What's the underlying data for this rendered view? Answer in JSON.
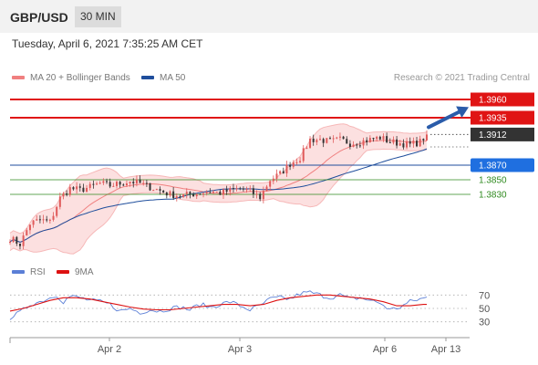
{
  "header": {
    "pair": "GBP/USD",
    "timeframe": "30 MIN",
    "datetime": "Tuesday, April 6, 2021 7:35:25 AM CET"
  },
  "legend": {
    "ma20": {
      "label": "MA 20 + Bollinger Bands",
      "color": "#f08080"
    },
    "ma50": {
      "label": "MA 50",
      "color": "#1f4e9c"
    },
    "credit": "Research © 2021 Trading Central"
  },
  "rsi_legend": {
    "rsi": {
      "label": "RSI",
      "color": "#5b7fd6"
    },
    "ma9": {
      "label": "9MA",
      "color": "#dd1111"
    }
  },
  "colors": {
    "resistance": "#e01414",
    "support": "#2f8a1f",
    "pivot": "#1f4e9c",
    "last": "#333333",
    "band_fill": "#fbdada",
    "candle_up": "#e05a5a",
    "candle_down": "#333333",
    "arrow": "#2a5caa"
  },
  "chart_data": [
    {
      "type": "line",
      "subtype": "candlestick",
      "x_ticks": [
        "Apr 2",
        "Apr 3",
        "Apr 6",
        "Apr 13"
      ],
      "ylim": [
        1.3745,
        1.3975
      ],
      "levels": [
        {
          "label": "1.3960",
          "value": 1.396,
          "style": "resistance"
        },
        {
          "label": "1.3935",
          "value": 1.3935,
          "style": "resistance"
        },
        {
          "label": "1.3912",
          "value": 1.3912,
          "style": "last"
        },
        {
          "label": "1.3870",
          "value": 1.387,
          "style": "pivot"
        },
        {
          "label": "1.3850",
          "value": 1.385,
          "style": "support"
        },
        {
          "label": "1.3830",
          "value": 1.383,
          "style": "support"
        }
      ],
      "price_path": [
        [
          0,
          1.377
        ],
        [
          3,
          1.3762
        ],
        [
          6,
          1.379
        ],
        [
          9,
          1.3795
        ],
        [
          12,
          1.3792
        ],
        [
          15,
          1.3825
        ],
        [
          18,
          1.3838
        ],
        [
          21,
          1.3836
        ],
        [
          24,
          1.384
        ],
        [
          27,
          1.3845
        ],
        [
          30,
          1.3842
        ],
        [
          33,
          1.3845
        ],
        [
          36,
          1.3848
        ],
        [
          39,
          1.3845
        ],
        [
          42,
          1.384
        ],
        [
          45,
          1.3835
        ],
        [
          48,
          1.383
        ],
        [
          51,
          1.3828
        ],
        [
          54,
          1.383
        ],
        [
          57,
          1.3832
        ],
        [
          60,
          1.3834
        ],
        [
          63,
          1.3832
        ],
        [
          66,
          1.3835
        ],
        [
          69,
          1.3838
        ],
        [
          72,
          1.3834
        ],
        [
          75,
          1.3826
        ],
        [
          78,
          1.385
        ],
        [
          81,
          1.3858
        ],
        [
          84,
          1.3872
        ],
        [
          87,
          1.388
        ],
        [
          90,
          1.3905
        ],
        [
          93,
          1.3905
        ],
        [
          96,
          1.3902
        ],
        [
          99,
          1.3905
        ],
        [
          102,
          1.39
        ],
        [
          105,
          1.3902
        ],
        [
          108,
          1.3905
        ],
        [
          111,
          1.3908
        ],
        [
          114,
          1.3902
        ],
        [
          117,
          1.39
        ],
        [
          120,
          1.3898
        ],
        [
          123,
          1.3902
        ],
        [
          125,
          1.3912
        ]
      ],
      "forecast_arrow": {
        "from": [
          125,
          1.3912
        ],
        "to": [
          135,
          1.3957
        ]
      }
    },
    {
      "type": "line",
      "title": "RSI",
      "y_ticks": [
        70,
        50,
        30
      ],
      "ylim": [
        20,
        80
      ],
      "series": [
        {
          "name": "RSI",
          "values": [
            [
              0,
              36
            ],
            [
              3,
              44
            ],
            [
              6,
              56
            ],
            [
              9,
              60
            ],
            [
              12,
              66
            ],
            [
              14,
              70
            ],
            [
              16,
              60
            ],
            [
              18,
              68
            ],
            [
              21,
              66
            ],
            [
              24,
              62
            ],
            [
              27,
              60
            ],
            [
              30,
              56
            ],
            [
              33,
              46
            ],
            [
              36,
              50
            ],
            [
              39,
              44
            ],
            [
              42,
              48
            ],
            [
              45,
              46
            ],
            [
              48,
              50
            ],
            [
              51,
              52
            ],
            [
              54,
              48
            ],
            [
              57,
              56
            ],
            [
              60,
              52
            ],
            [
              63,
              56
            ],
            [
              66,
              60
            ],
            [
              69,
              54
            ],
            [
              72,
              48
            ],
            [
              75,
              54
            ],
            [
              78,
              64
            ],
            [
              81,
              66
            ],
            [
              84,
              64
            ],
            [
              87,
              72
            ],
            [
              90,
              74
            ],
            [
              93,
              70
            ],
            [
              96,
              66
            ],
            [
              99,
              70
            ],
            [
              102,
              64
            ],
            [
              105,
              66
            ],
            [
              108,
              62
            ],
            [
              111,
              58
            ],
            [
              114,
              48
            ],
            [
              117,
              52
            ],
            [
              120,
              60
            ],
            [
              123,
              64
            ],
            [
              125,
              66
            ]
          ]
        },
        {
          "name": "9MA",
          "values": [
            [
              0,
              46
            ],
            [
              4,
              50
            ],
            [
              8,
              56
            ],
            [
              12,
              62
            ],
            [
              16,
              66
            ],
            [
              20,
              66
            ],
            [
              24,
              64
            ],
            [
              28,
              60
            ],
            [
              32,
              56
            ],
            [
              36,
              52
            ],
            [
              40,
              49
            ],
            [
              44,
              48
            ],
            [
              48,
              48
            ],
            [
              52,
              50
            ],
            [
              56,
              52
            ],
            [
              60,
              54
            ],
            [
              64,
              56
            ],
            [
              68,
              56
            ],
            [
              72,
              54
            ],
            [
              76,
              56
            ],
            [
              80,
              62
            ],
            [
              84,
              66
            ],
            [
              88,
              68
            ],
            [
              92,
              70
            ],
            [
              96,
              70
            ],
            [
              100,
              68
            ],
            [
              104,
              66
            ],
            [
              108,
              64
            ],
            [
              112,
              60
            ],
            [
              116,
              54
            ],
            [
              120,
              54
            ],
            [
              124,
              56
            ],
            [
              125,
              56
            ]
          ]
        }
      ]
    }
  ]
}
